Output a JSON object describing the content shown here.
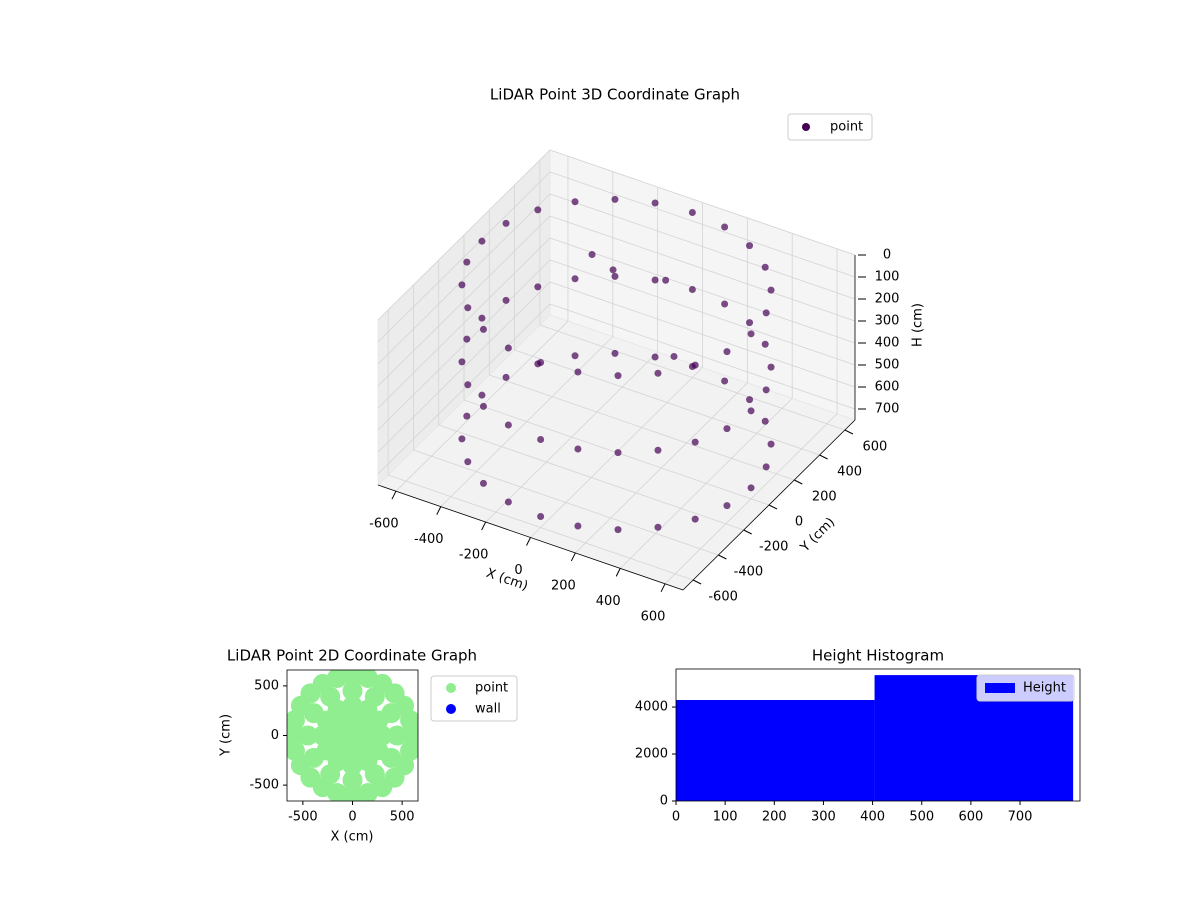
{
  "chart_data": [
    {
      "type": "scatter3d",
      "title": "LiDAR Point 3D Coordinate Graph",
      "xlabel": "X (cm)",
      "ylabel": "Y (cm)",
      "zlabel": "H (cm)",
      "xlim": [
        -680,
        680
      ],
      "ylim": [
        -680,
        680
      ],
      "zlim": [
        750,
        0
      ],
      "xticks": [
        -600,
        -400,
        -200,
        0,
        200,
        400,
        600
      ],
      "yticks": [
        -600,
        -400,
        -200,
        0,
        200,
        400,
        600
      ],
      "zticks": [
        0,
        100,
        200,
        300,
        400,
        500,
        600,
        700
      ],
      "grid": true,
      "legend": "upper right",
      "series": [
        {
          "name": "point",
          "color": "#440154",
          "alpha": 0.7,
          "x": [
            600,
            580,
            520,
            424,
            300,
            155,
            0,
            -155,
            -300,
            -424,
            -520,
            -580,
            -600,
            -580,
            -520,
            -424,
            -300,
            -155,
            0,
            155,
            300,
            424,
            520,
            580,
            600,
            580,
            520,
            424,
            300,
            155,
            0,
            -155,
            -300,
            -424,
            -520,
            -580,
            -600,
            -580,
            -520,
            -424,
            -300,
            -155,
            0,
            155,
            300,
            424,
            520,
            580,
            600,
            580,
            520,
            424,
            300,
            155,
            0,
            -155,
            -300,
            -424,
            -520,
            -580,
            -600,
            -580,
            -520,
            -424,
            -300,
            -155,
            0,
            155,
            300,
            424,
            520,
            580,
            -250,
            -100,
            50,
            200
          ],
          "y": [
            0,
            155,
            300,
            424,
            520,
            580,
            600,
            580,
            520,
            424,
            300,
            155,
            0,
            -155,
            -300,
            -424,
            -520,
            -580,
            -600,
            -580,
            -520,
            -424,
            -300,
            -155,
            0,
            155,
            300,
            424,
            520,
            580,
            600,
            580,
            520,
            424,
            300,
            155,
            0,
            -155,
            -300,
            -424,
            -520,
            -580,
            -600,
            -580,
            -520,
            -424,
            -300,
            -155,
            0,
            155,
            300,
            424,
            520,
            580,
            600,
            580,
            520,
            424,
            300,
            155,
            0,
            -155,
            -300,
            -424,
            -520,
            -580,
            -600,
            -580,
            -520,
            -424,
            -300,
            -155,
            250,
            150,
            300,
            100
          ],
          "z": [
            0,
            0,
            0,
            0,
            0,
            0,
            0,
            0,
            0,
            0,
            0,
            0,
            0,
            0,
            0,
            0,
            0,
            0,
            0,
            0,
            0,
            0,
            0,
            0,
            350,
            350,
            350,
            350,
            350,
            350,
            350,
            350,
            350,
            350,
            350,
            350,
            350,
            350,
            350,
            350,
            350,
            350,
            350,
            350,
            350,
            350,
            350,
            350,
            700,
            700,
            700,
            700,
            700,
            700,
            700,
            700,
            700,
            700,
            700,
            700,
            700,
            700,
            700,
            700,
            700,
            700,
            700,
            700,
            700,
            700,
            700,
            700,
            80,
            40,
            120,
            300
          ]
        }
      ]
    },
    {
      "type": "scatter",
      "title": "LiDAR Point 2D Coordinate Graph",
      "xlabel": "X (cm)",
      "ylabel": "Y (cm)",
      "xlim": [
        -660,
        660
      ],
      "ylim": [
        -660,
        660
      ],
      "xticks": [
        -500,
        0,
        500
      ],
      "yticks": [
        -500,
        0,
        500
      ],
      "legend": "outside right",
      "series": [
        {
          "name": "point",
          "color": "#90ee90",
          "x": [
            0,
            150,
            130,
            75,
            0,
            -75,
            -130,
            -150,
            -130,
            -75,
            0,
            75,
            130,
            300,
            260,
            150,
            0,
            -150,
            -260,
            -300,
            -260,
            -150,
            0,
            150,
            260,
            450,
            390,
            225,
            0,
            -225,
            -390,
            -450,
            -390,
            -225,
            0,
            225,
            390,
            600,
            580,
            520,
            424,
            300,
            155,
            0,
            -155,
            -300,
            -424,
            -520,
            -580,
            -600,
            -580,
            -520,
            -424,
            -300,
            -155,
            0,
            155,
            300,
            424,
            520,
            580
          ],
          "y": [
            0,
            0,
            75,
            130,
            150,
            130,
            75,
            0,
            -75,
            -130,
            -150,
            -130,
            -75,
            0,
            150,
            260,
            300,
            260,
            150,
            0,
            -150,
            -260,
            -300,
            -260,
            -150,
            0,
            225,
            390,
            450,
            390,
            225,
            0,
            -225,
            -390,
            -450,
            -390,
            -225,
            0,
            155,
            300,
            424,
            520,
            580,
            600,
            580,
            520,
            424,
            300,
            155,
            0,
            -155,
            -300,
            -424,
            -520,
            -580,
            -600,
            -580,
            -520,
            -424,
            -300,
            -155
          ]
        },
        {
          "name": "wall",
          "color": "#0000ff",
          "x": [],
          "y": []
        }
      ]
    },
    {
      "type": "histogram",
      "title": "Height Histogram",
      "bins": [
        0,
        404,
        808
      ],
      "values": [
        4300,
        5360
      ],
      "name": "Height",
      "color": "#0000ff",
      "xlim": [
        0,
        822
      ],
      "ylim": [
        0,
        5620
      ],
      "xticks": [
        0,
        100,
        200,
        300,
        400,
        500,
        600,
        700
      ],
      "yticks": [
        0,
        2000,
        4000
      ],
      "legend": "upper right"
    }
  ]
}
